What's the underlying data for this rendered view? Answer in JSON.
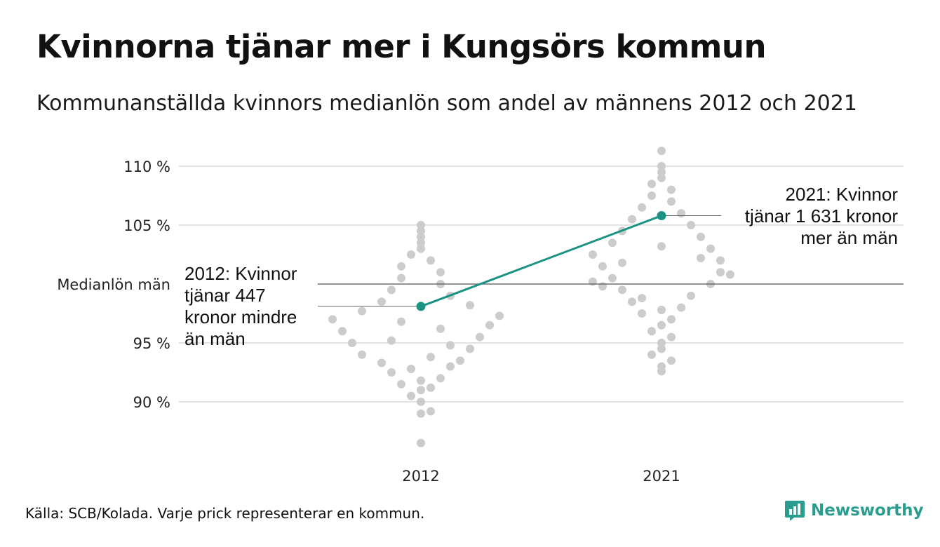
{
  "header": {
    "title": "Kvinnorna tjänar mer i Kungsörs kommun",
    "subtitle": "Kommunanställda kvinnors medianlön som andel av männens 2012 och 2021"
  },
  "footer": {
    "source": "Källa: SCB/Kolada. Varje prick representerar en kommun.",
    "logo_text": "Newsworthy"
  },
  "colors": {
    "highlight": "#1a9384",
    "dots": "#cccccc",
    "grid": "#e3e3e3",
    "reference": "#555555",
    "brand": "#2a9d8f"
  },
  "chart_data": {
    "type": "scatter",
    "subtype": "beeswarm",
    "categories": [
      "2012",
      "2021"
    ],
    "y_ticks": [
      {
        "value": 90,
        "label": "90 %"
      },
      {
        "value": 95,
        "label": "95 %"
      },
      {
        "value": 105,
        "label": "105 %"
      },
      {
        "value": 110,
        "label": "110 %"
      }
    ],
    "reference_line": {
      "value": 100,
      "label": "Medianlön män"
    },
    "ylim": [
      86,
      112
    ],
    "grid": true,
    "highlight": {
      "values": [
        {
          "x": "2012",
          "y": 98.1
        },
        {
          "x": "2021",
          "y": 105.8
        }
      ],
      "annotations": [
        {
          "x": "2012",
          "lines": [
            "2012: Kvinnor",
            "tjänar 447",
            "kronor mindre",
            "än män"
          ]
        },
        {
          "x": "2021",
          "lines": [
            "2021: Kvinnor",
            "tjänar 1 631 kronor",
            "mer än män"
          ]
        }
      ]
    },
    "distributions": [
      {
        "category": "2012",
        "points": [
          [
            86.5,
            0
          ],
          [
            89.0,
            0
          ],
          [
            89.2,
            1
          ],
          [
            90.0,
            0
          ],
          [
            90.5,
            -1
          ],
          [
            91.2,
            1
          ],
          [
            91.0,
            0
          ],
          [
            91.5,
            -2
          ],
          [
            92.0,
            2
          ],
          [
            92.5,
            -3
          ],
          [
            93.0,
            3
          ],
          [
            93.3,
            -4
          ],
          [
            93.5,
            4
          ],
          [
            94.0,
            -6
          ],
          [
            94.5,
            5
          ],
          [
            95.0,
            -7
          ],
          [
            95.5,
            6
          ],
          [
            96.0,
            -8
          ],
          [
            96.5,
            7
          ],
          [
            97.0,
            -9
          ],
          [
            97.3,
            8
          ],
          [
            97.7,
            -6
          ],
          [
            98.2,
            5
          ],
          [
            98.5,
            -4
          ],
          [
            99.0,
            3
          ],
          [
            99.5,
            -3
          ],
          [
            100.0,
            2
          ],
          [
            100.5,
            -2
          ],
          [
            101.0,
            2
          ],
          [
            101.5,
            -2
          ],
          [
            102.0,
            1
          ],
          [
            102.5,
            -1
          ],
          [
            103.0,
            0
          ],
          [
            103.5,
            0
          ],
          [
            104.0,
            0
          ],
          [
            104.5,
            0
          ],
          [
            105.0,
            0
          ],
          [
            94.8,
            3
          ],
          [
            95.2,
            -3
          ],
          [
            96.2,
            2
          ],
          [
            96.8,
            -2
          ],
          [
            93.8,
            1
          ],
          [
            92.8,
            -1
          ],
          [
            91.8,
            0
          ]
        ]
      },
      {
        "category": "2021",
        "points": [
          [
            92.6,
            0
          ],
          [
            93.0,
            0
          ],
          [
            93.5,
            1
          ],
          [
            94.0,
            -1
          ],
          [
            94.5,
            0
          ],
          [
            95.0,
            0
          ],
          [
            95.5,
            1
          ],
          [
            96.0,
            -1
          ],
          [
            96.5,
            0
          ],
          [
            97.0,
            1
          ],
          [
            97.5,
            -2
          ],
          [
            98.0,
            2
          ],
          [
            98.5,
            -3
          ],
          [
            99.0,
            3
          ],
          [
            99.5,
            -4
          ],
          [
            100.0,
            5
          ],
          [
            100.5,
            -5
          ],
          [
            101.0,
            6
          ],
          [
            101.5,
            -6
          ],
          [
            102.0,
            6
          ],
          [
            102.5,
            -7
          ],
          [
            103.0,
            5
          ],
          [
            103.5,
            -5
          ],
          [
            104.0,
            4
          ],
          [
            104.5,
            -4
          ],
          [
            105.0,
            3
          ],
          [
            105.5,
            -3
          ],
          [
            106.0,
            2
          ],
          [
            106.5,
            -2
          ],
          [
            107.0,
            1
          ],
          [
            107.5,
            -1
          ],
          [
            108.0,
            1
          ],
          [
            108.5,
            -1
          ],
          [
            109.0,
            0
          ],
          [
            109.5,
            0
          ],
          [
            110.0,
            0
          ],
          [
            111.3,
            0
          ],
          [
            100.2,
            -7
          ],
          [
            100.8,
            7
          ],
          [
            99.8,
            -6
          ],
          [
            101.8,
            -4
          ],
          [
            102.2,
            4
          ],
          [
            103.2,
            0
          ],
          [
            98.8,
            -2
          ],
          [
            97.8,
            0
          ]
        ]
      }
    ]
  }
}
